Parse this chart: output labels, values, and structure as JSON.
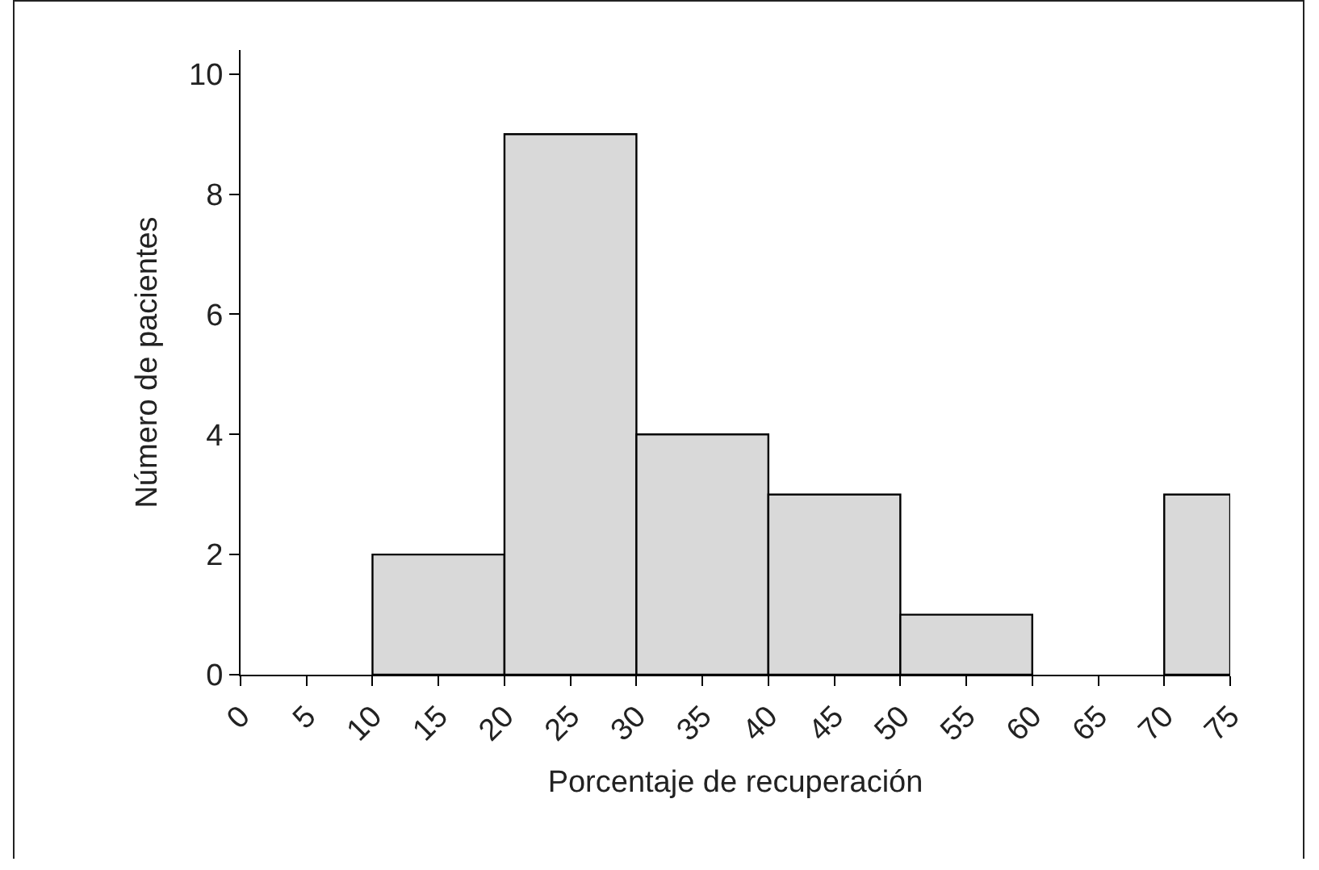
{
  "chart_data": {
    "type": "histogram",
    "xlabel": "Porcentaje de recuperación",
    "ylabel": "Número de pacientes",
    "bins": [
      10,
      20,
      30,
      40,
      50,
      60,
      70,
      75
    ],
    "values": [
      2,
      9,
      4,
      3,
      1,
      null,
      3
    ],
    "color": "#d9d9d9",
    "xlim": [
      0,
      75
    ],
    "xticks": [
      0,
      5,
      10,
      15,
      20,
      25,
      30,
      35,
      40,
      45,
      50,
      55,
      60,
      65,
      70,
      75
    ],
    "ylim": [
      0,
      10.4
    ],
    "yticks": [
      0,
      2,
      4,
      6,
      8,
      10
    ],
    "grid": false
  }
}
